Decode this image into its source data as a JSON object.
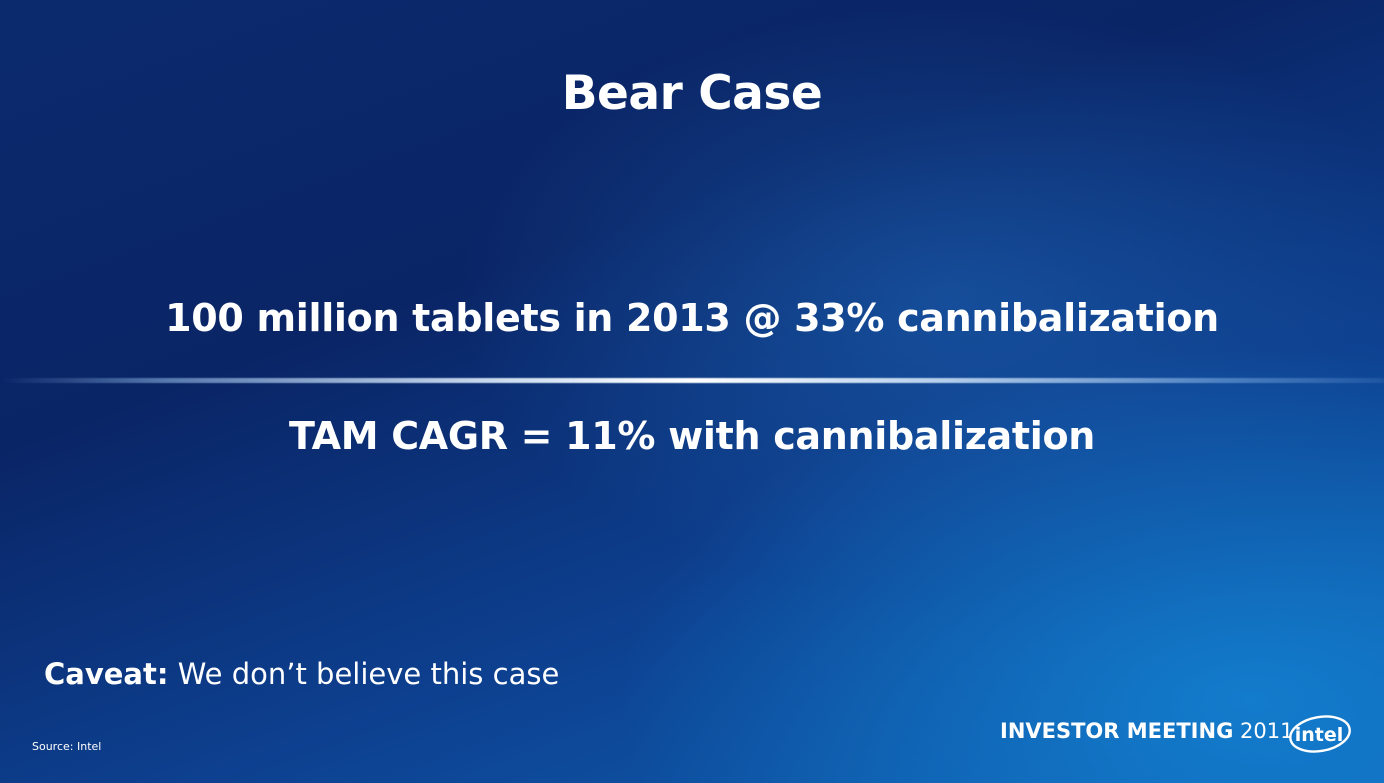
{
  "slide": {
    "title": "Bear Case",
    "headline": "100 million tablets in 2013 @ 33% cannibalization",
    "subheadline": "TAM CAGR = 11% with cannibalization",
    "caveat": {
      "label": "Caveat:",
      "text": "We don’t believe this case"
    },
    "source": "Source: Intel"
  },
  "footer": {
    "event_bold": "INVESTOR MEETING",
    "year": "2011",
    "logo_text": "intel"
  },
  "colors": {
    "background_dark": "#0a2566",
    "background_light": "#0f62b5",
    "text": "#ffffff"
  }
}
